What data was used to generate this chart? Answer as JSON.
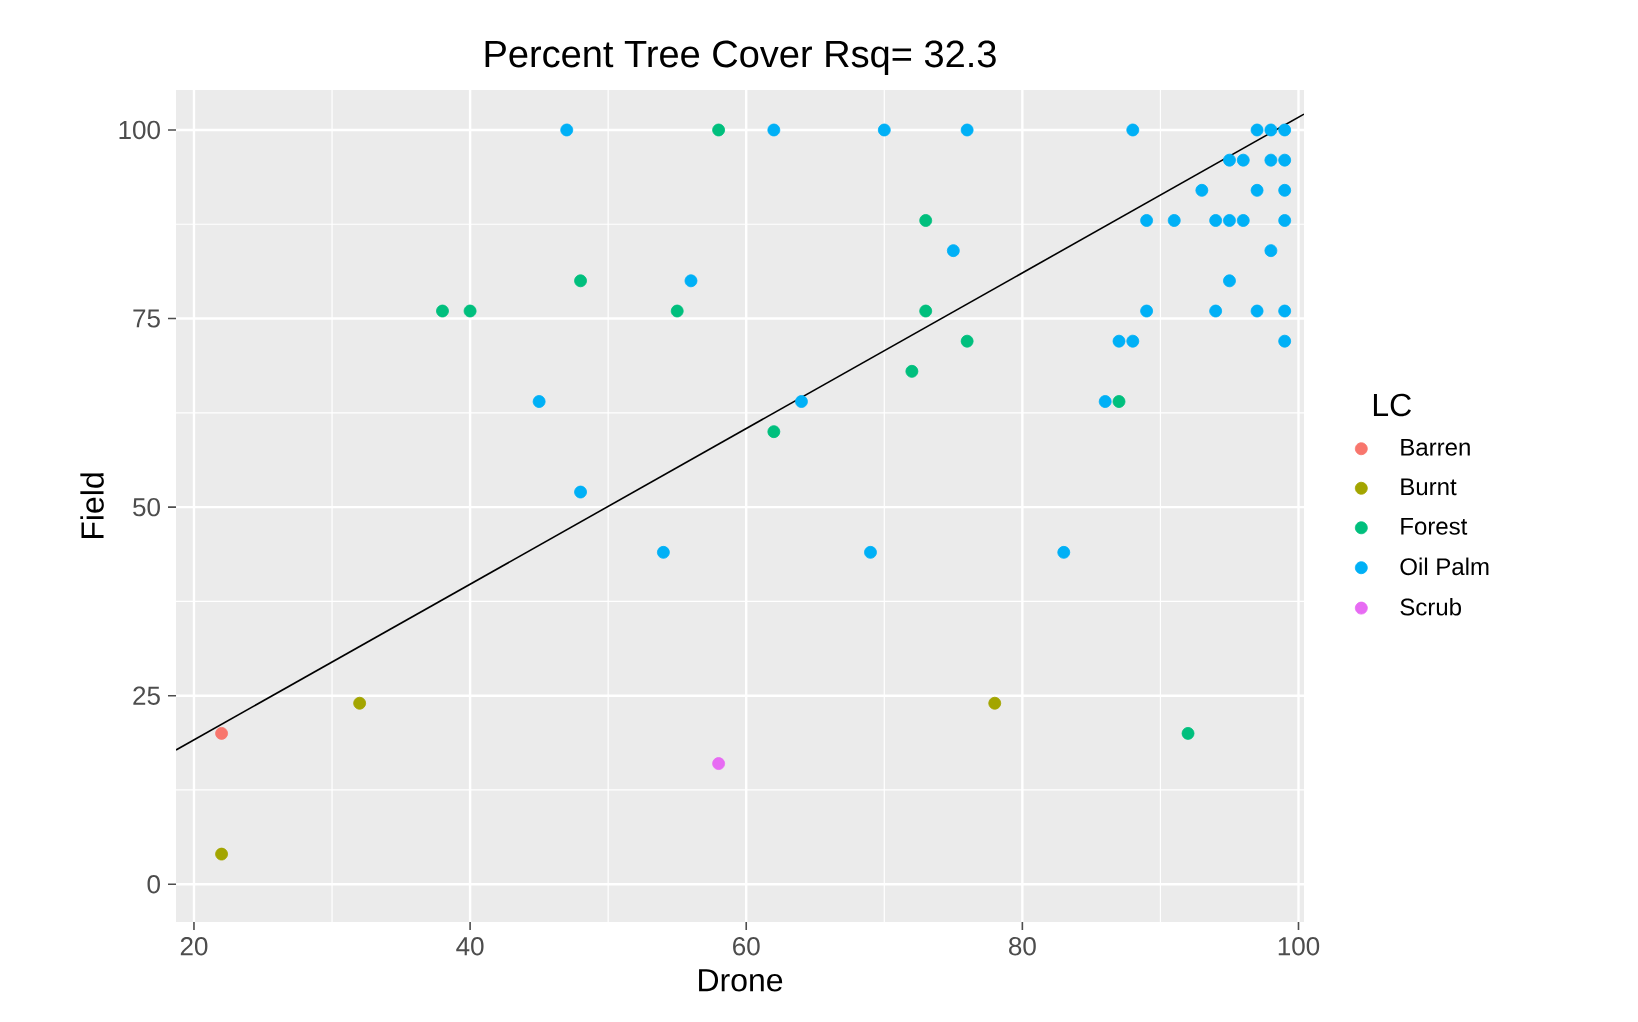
{
  "chart_data": {
    "type": "scatter",
    "title": "Percent Tree Cover   Rsq= 32.3",
    "xlabel": "Drone",
    "ylabel": "Field",
    "legend_title": "LC",
    "legend": "right",
    "grid": true,
    "xlim": [
      18.7,
      100.4
    ],
    "ylim": [
      -5,
      105.3
    ],
    "xticks": [
      20,
      40,
      60,
      80,
      100
    ],
    "yticks": [
      0,
      25,
      50,
      75,
      100
    ],
    "series": [
      {
        "name": "Barren",
        "color": "#f8766d",
        "marker": "circle",
        "x": [
          22
        ],
        "values": [
          20
        ]
      },
      {
        "name": "Burnt",
        "color": "#a3a500",
        "marker": "circle",
        "x": [
          22,
          32,
          78
        ],
        "values": [
          4,
          24,
          24
        ]
      },
      {
        "name": "Forest",
        "color": "#00bf7d",
        "marker": "circle",
        "x": [
          38,
          40,
          48,
          55,
          58,
          62,
          72,
          73,
          73,
          76,
          87,
          92
        ],
        "values": [
          76,
          76,
          80,
          76,
          100,
          60,
          68,
          88,
          76,
          72,
          64,
          20
        ]
      },
      {
        "name": "Oil Palm",
        "color": "#00b0f6",
        "marker": "circle",
        "x": [
          45,
          47,
          48,
          54,
          56,
          62,
          64,
          69,
          70,
          75,
          76,
          83,
          86,
          87,
          88,
          88,
          89,
          89,
          91,
          93,
          94,
          94,
          95,
          95,
          95,
          96,
          96,
          97,
          97,
          97,
          98,
          98,
          98,
          99,
          99,
          99,
          99,
          99,
          99
        ],
        "values": [
          64,
          100,
          52,
          44,
          80,
          100,
          64,
          44,
          100,
          84,
          100,
          44,
          64,
          72,
          100,
          72,
          88,
          76,
          88,
          92,
          88,
          76,
          96,
          88,
          80,
          96,
          88,
          100,
          92,
          76,
          100,
          96,
          84,
          100,
          96,
          92,
          88,
          76,
          72
        ]
      },
      {
        "name": "Scrub",
        "color": "#e76bf3",
        "marker": "circle",
        "x": [
          58
        ],
        "values": [
          16
        ]
      },
      {
        "type": "line",
        "color": "#000000",
        "x": [
          18.7,
          100.4
        ],
        "values": [
          17.8,
          102.1
        ]
      }
    ]
  }
}
